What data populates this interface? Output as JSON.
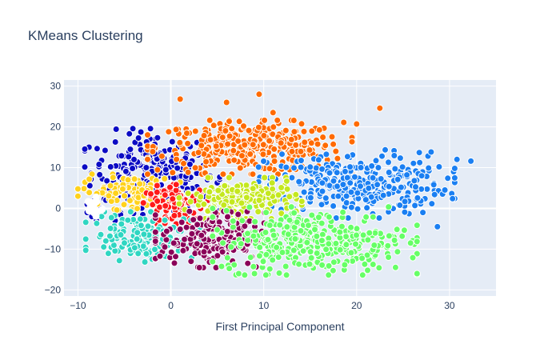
{
  "chart_data": {
    "type": "scatter",
    "title": "KMeans Clustering",
    "xlabel": "First Principal Component",
    "ylabel": "",
    "xlim": [
      -11.5,
      35
    ],
    "ylim": [
      -21.5,
      31.5
    ],
    "xticks": [
      -10,
      0,
      10,
      20,
      30
    ],
    "yticks": [
      -20,
      -10,
      0,
      10,
      20,
      30
    ],
    "grid": true,
    "legend": "none",
    "colors": {
      "plot_bg": "#e5ecf6",
      "grid": "#ffffff",
      "text": "#2a3f5f",
      "marker_outline": "#ffffff"
    },
    "clusters": [
      {
        "color": "#0b0bc4",
        "center": [
          -2,
          9
        ],
        "spread": [
          3.3,
          4.8
        ],
        "n": 260,
        "extra_points": [
          [
            -9,
            1
          ],
          [
            -8.5,
            -2
          ],
          [
            -7.5,
            0
          ],
          [
            -6,
            -3
          ],
          [
            -9,
            -1
          ],
          [
            -8,
            -3
          ],
          [
            -7,
            2
          ]
        ]
      },
      {
        "color": "#ff6a00",
        "center": [
          8.5,
          15
        ],
        "spread": [
          5,
          3
        ],
        "n": 340,
        "extra_points": [
          [
            9.5,
            28
          ],
          [
            1,
            26.8
          ],
          [
            6,
            26
          ],
          [
            22.5,
            24.6
          ],
          [
            20,
            20.7
          ],
          [
            11,
            23.5
          ]
        ]
      },
      {
        "color": "#1a7ff2",
        "center": [
          20,
          6
        ],
        "spread": [
          4.8,
          3.8
        ],
        "n": 330,
        "extra_points": [
          [
            30.8,
            12
          ],
          [
            32.3,
            11.6
          ],
          [
            29.5,
            4.5
          ],
          [
            28.7,
            -4.5
          ],
          [
            27,
            8
          ]
        ]
      },
      {
        "color": "#ffd21c",
        "center": [
          -4.5,
          4
        ],
        "spread": [
          2.5,
          2
        ],
        "n": 110,
        "extra_points": []
      },
      {
        "color": "#ff1a1a",
        "center": [
          1,
          1
        ],
        "spread": [
          1.8,
          2.2
        ],
        "n": 90,
        "extra_points": []
      },
      {
        "color": "#c4e81f",
        "center": [
          7.5,
          2.5
        ],
        "spread": [
          3,
          2.3
        ],
        "n": 190,
        "extra_points": []
      },
      {
        "color": "#2fd6c2",
        "center": [
          -3,
          -7
        ],
        "spread": [
          2.8,
          2.8
        ],
        "n": 150,
        "extra_points": [
          [
            -7,
            -8
          ],
          [
            -5,
            -8.5
          ]
        ]
      },
      {
        "color": "#8a0059",
        "center": [
          4.5,
          -7.5
        ],
        "spread": [
          2.8,
          3.2
        ],
        "n": 220,
        "extra_points": []
      },
      {
        "color": "#66ff66",
        "center": [
          15.5,
          -8
        ],
        "spread": [
          5,
          3.8
        ],
        "n": 360,
        "extra_points": [
          [
            26.5,
            -16
          ],
          [
            25.8,
            -8.5
          ],
          [
            9,
            -16
          ]
        ]
      },
      {
        "color": "#ffffff",
        "center": [
          -8.3,
          0.3
        ],
        "spread": [
          0.5,
          1.2
        ],
        "n": 18,
        "extra_points": []
      }
    ]
  }
}
